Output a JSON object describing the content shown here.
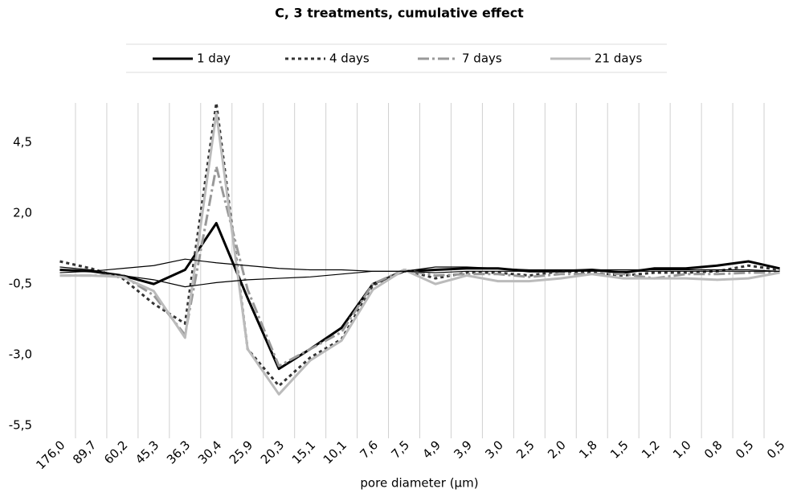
{
  "chart_data": {
    "type": "line",
    "title": "C, 3 treatments, cumulative effect",
    "x_label": "pore diameter (µm)",
    "categories": [
      "176,0",
      "89,7",
      "60,2",
      "45,3",
      "36,3",
      "30,4",
      "25,9",
      "20,3",
      "15,1",
      "10,1",
      "7,6",
      "7,5",
      "4,9",
      "3,9",
      "3,0",
      "2,5",
      "2,0",
      "1,8",
      "1,5",
      "1,2",
      "1,0",
      "0,8",
      "0,5",
      "0,5"
    ],
    "ylim": [
      -5.5,
      5.9
    ],
    "yticks": [
      {
        "value": -5.5,
        "label": "-5,5"
      },
      {
        "value": -3.0,
        "label": "-3,0"
      },
      {
        "value": -0.5,
        "label": "-0,5"
      },
      {
        "value": 2.0,
        "label": "2,0"
      },
      {
        "value": 4.5,
        "label": "4,5"
      }
    ],
    "grid": true,
    "series": [
      {
        "name": "1 day",
        "color": "#000000",
        "dash": "solid",
        "values": [
          0.0,
          -0.05,
          -0.2,
          -0.5,
          0.0,
          1.65,
          -1.0,
          -3.5,
          -2.8,
          -2.05,
          -0.5,
          -0.05,
          0.0,
          0.05,
          0.05,
          -0.05,
          -0.05,
          0.0,
          -0.1,
          0.05,
          0.05,
          0.15,
          0.3,
          0.05
        ]
      },
      {
        "name": "4 days",
        "color": "#333333",
        "dash": "dotted",
        "values": [
          0.3,
          0.05,
          -0.3,
          -1.2,
          -1.9,
          5.9,
          -2.8,
          -4.1,
          -3.1,
          -2.45,
          -0.55,
          0.0,
          -0.3,
          -0.1,
          -0.1,
          -0.2,
          -0.05,
          -0.1,
          -0.2,
          -0.1,
          -0.1,
          -0.05,
          0.15,
          0.0
        ]
      },
      {
        "name": "7 days",
        "color": "#999999",
        "dash": "dash-dot",
        "values": [
          -0.2,
          -0.2,
          -0.2,
          -0.9,
          -2.3,
          3.65,
          -0.7,
          -3.4,
          -2.8,
          -2.2,
          -0.5,
          0.0,
          -0.2,
          -0.15,
          -0.15,
          -0.25,
          -0.15,
          -0.15,
          -0.15,
          -0.3,
          -0.15,
          -0.15,
          -0.1,
          -0.1
        ]
      },
      {
        "name": "21 days",
        "color": "#bbbbbb",
        "dash": "solid",
        "values": [
          -0.2,
          -0.2,
          -0.25,
          -0.75,
          -2.4,
          5.55,
          -2.8,
          -4.4,
          -3.2,
          -2.5,
          -0.7,
          0.0,
          -0.5,
          -0.2,
          -0.4,
          -0.4,
          -0.3,
          -0.15,
          -0.3,
          -0.3,
          -0.3,
          -0.35,
          -0.3,
          -0.1
        ]
      },
      {
        "color": "#000000",
        "values": [
          -0.1,
          -0.05,
          0.05,
          0.15,
          0.38,
          0.25,
          0.15,
          0.05,
          0.0,
          0.0,
          -0.05,
          -0.05,
          0.1,
          0.1,
          0.05,
          0.0,
          0.0,
          0.0,
          0.0,
          0.0,
          0.0,
          0.0,
          0.0,
          -0.05
        ]
      },
      {
        "color": "#000000",
        "values": [
          0.1,
          0.0,
          -0.2,
          -0.35,
          -0.6,
          -0.45,
          -0.35,
          -0.3,
          -0.25,
          -0.15,
          -0.05,
          -0.05,
          -0.1,
          -0.05,
          -0.05,
          -0.05,
          -0.05,
          -0.05,
          -0.05,
          -0.05,
          -0.05,
          -0.05,
          -0.05,
          -0.05
        ]
      }
    ]
  }
}
